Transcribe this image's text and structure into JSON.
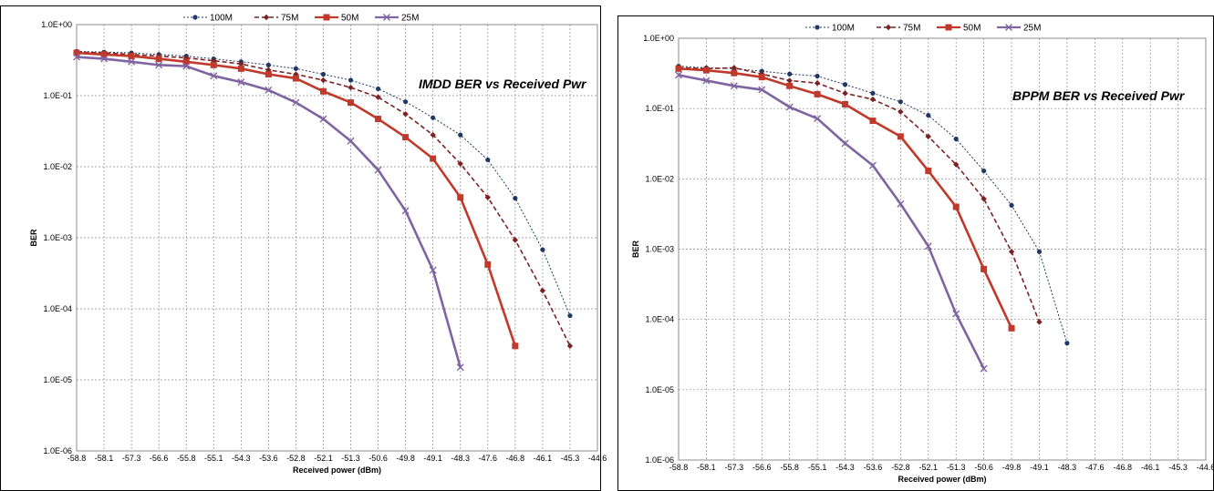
{
  "chart_data": [
    {
      "type": "line",
      "title": "IMDD  BER vs Received Pwr",
      "xlabel": "Received power (dBm)",
      "ylabel": "BER",
      "yscale": "log",
      "ylim": [
        1e-06,
        1
      ],
      "x_ticks": [
        "-58.8",
        "-58.1",
        "-57.3",
        "-56.6",
        "-55.8",
        "-55.1",
        "-54.3",
        "-53.6",
        "-52.8",
        "-52.1",
        "-51.3",
        "-50.6",
        "-49.8",
        "-49.1",
        "-48.3",
        "-47.6",
        "-46.8",
        "-46.1",
        "-45.3",
        "-44.6"
      ],
      "y_ticks": [
        "1.0E+00",
        "1.0E-01",
        "1.0E-02",
        "1.0E-03",
        "1.0E-04",
        "1.0E-05",
        "1.0E-06"
      ],
      "grid": true,
      "legend_position": "top",
      "series": [
        {
          "name": "100M",
          "color": "#1f3864",
          "style": "dotted",
          "marker": "dot",
          "x": [
            "-58.8",
            "-58.1",
            "-57.3",
            "-56.6",
            "-55.8",
            "-55.1",
            "-54.3",
            "-53.6",
            "-52.8",
            "-52.1",
            "-51.3",
            "-50.6",
            "-49.8",
            "-49.1",
            "-48.3",
            "-47.6",
            "-46.8",
            "-46.1",
            "-45.3"
          ],
          "values": [
            0.42,
            0.41,
            0.4,
            0.38,
            0.36,
            0.33,
            0.3,
            0.27,
            0.24,
            0.2,
            0.165,
            0.125,
            0.082,
            0.049,
            0.028,
            0.0125,
            0.0036,
            0.00068,
            8e-05
          ]
        },
        {
          "name": "75M",
          "color": "#7b2222",
          "style": "dashed",
          "marker": "diamond",
          "x": [
            "-58.8",
            "-58.1",
            "-57.3",
            "-56.6",
            "-55.8",
            "-55.1",
            "-54.3",
            "-53.6",
            "-52.8",
            "-52.1",
            "-51.3",
            "-50.6",
            "-49.8",
            "-49.1",
            "-48.3",
            "-47.6",
            "-46.8",
            "-46.1",
            "-45.3"
          ],
          "values": [
            0.41,
            0.4,
            0.38,
            0.36,
            0.34,
            0.31,
            0.28,
            0.23,
            0.2,
            0.165,
            0.13,
            0.095,
            0.055,
            0.028,
            0.011,
            0.0037,
            0.00093,
            0.00018,
            3e-05
          ]
        },
        {
          "name": "50M",
          "color": "#c0392b",
          "style": "solid",
          "marker": "square",
          "x": [
            "-58.8",
            "-58.1",
            "-57.3",
            "-56.6",
            "-55.8",
            "-55.1",
            "-54.3",
            "-53.6",
            "-52.8",
            "-52.1",
            "-51.3",
            "-50.6",
            "-49.8",
            "-49.1",
            "-48.3",
            "-47.6",
            "-46.8"
          ],
          "values": [
            0.4,
            0.38,
            0.36,
            0.33,
            0.3,
            0.27,
            0.24,
            0.2,
            0.175,
            0.115,
            0.08,
            0.047,
            0.026,
            0.013,
            0.0037,
            0.00042,
            3e-05
          ]
        },
        {
          "name": "25M",
          "color": "#8064a2",
          "style": "solid",
          "marker": "x",
          "x": [
            "-58.8",
            "-58.1",
            "-57.3",
            "-56.6",
            "-55.8",
            "-55.1",
            "-54.3",
            "-53.6",
            "-52.8",
            "-52.1",
            "-51.3",
            "-50.6",
            "-49.8",
            "-49.1",
            "-48.3"
          ],
          "values": [
            0.35,
            0.33,
            0.3,
            0.27,
            0.26,
            0.19,
            0.155,
            0.12,
            0.08,
            0.047,
            0.023,
            0.009,
            0.0024,
            0.00035,
            1.5e-05
          ]
        }
      ]
    },
    {
      "type": "line",
      "title": "BPPM  BER vs Received Pwr",
      "xlabel": "Received power (dBm)",
      "ylabel": "BER",
      "yscale": "log",
      "ylim": [
        1e-06,
        1
      ],
      "x_ticks": [
        "-58.8",
        "-58.1",
        "-57.3",
        "-56.6",
        "-55.8",
        "-55.1",
        "-54.3",
        "-53.6",
        "-52.8",
        "-52.1",
        "-51.3",
        "-50.6",
        "-49.8",
        "-49.1",
        "-48.3",
        "-47.6",
        "-46.8",
        "-46.1",
        "-45.3",
        "-44.6"
      ],
      "y_ticks": [
        "1.0E+00",
        "1.0E-01",
        "1.0E-02",
        "1.0E-03",
        "1.0E-04",
        "1.0E-05",
        "1.0E-06"
      ],
      "grid": true,
      "legend_position": "top",
      "series": [
        {
          "name": "100M",
          "color": "#1f3864",
          "style": "dotted",
          "marker": "dot",
          "x": [
            "-58.8",
            "-58.1",
            "-57.3",
            "-56.6",
            "-55.8",
            "-55.1",
            "-54.3",
            "-53.6",
            "-52.8",
            "-52.1",
            "-51.3",
            "-50.6",
            "-49.8",
            "-49.1",
            "-48.3"
          ],
          "values": [
            0.4,
            0.38,
            0.37,
            0.34,
            0.31,
            0.29,
            0.22,
            0.165,
            0.125,
            0.08,
            0.037,
            0.013,
            0.0042,
            0.00092,
            4.6e-05
          ]
        },
        {
          "name": "75M",
          "color": "#7b2222",
          "style": "dashed",
          "marker": "diamond",
          "x": [
            "-58.8",
            "-58.1",
            "-57.3",
            "-56.6",
            "-55.8",
            "-55.1",
            "-54.3",
            "-53.6",
            "-52.8",
            "-52.1",
            "-51.3",
            "-50.6",
            "-49.8",
            "-49.1"
          ],
          "values": [
            0.38,
            0.37,
            0.38,
            0.31,
            0.25,
            0.23,
            0.165,
            0.135,
            0.09,
            0.04,
            0.016,
            0.0052,
            0.00092,
            9.2e-05
          ]
        },
        {
          "name": "50M",
          "color": "#c0392b",
          "style": "solid",
          "marker": "square",
          "x": [
            "-58.8",
            "-58.1",
            "-57.3",
            "-56.6",
            "-55.8",
            "-55.1",
            "-54.3",
            "-53.6",
            "-52.8",
            "-52.1",
            "-51.3",
            "-50.6",
            "-49.8"
          ],
          "values": [
            0.37,
            0.35,
            0.32,
            0.28,
            0.21,
            0.16,
            0.115,
            0.067,
            0.04,
            0.013,
            0.004,
            0.00052,
            7.5e-05
          ]
        },
        {
          "name": "25M",
          "color": "#8064a2",
          "style": "solid",
          "marker": "x",
          "x": [
            "-58.8",
            "-58.1",
            "-57.3",
            "-56.6",
            "-55.8",
            "-55.1",
            "-54.3",
            "-53.6",
            "-52.8",
            "-52.1",
            "-51.3",
            "-50.6"
          ],
          "values": [
            0.3,
            0.25,
            0.21,
            0.185,
            0.105,
            0.072,
            0.032,
            0.0155,
            0.0044,
            0.0011,
            0.00012,
            2e-05
          ]
        }
      ]
    }
  ]
}
